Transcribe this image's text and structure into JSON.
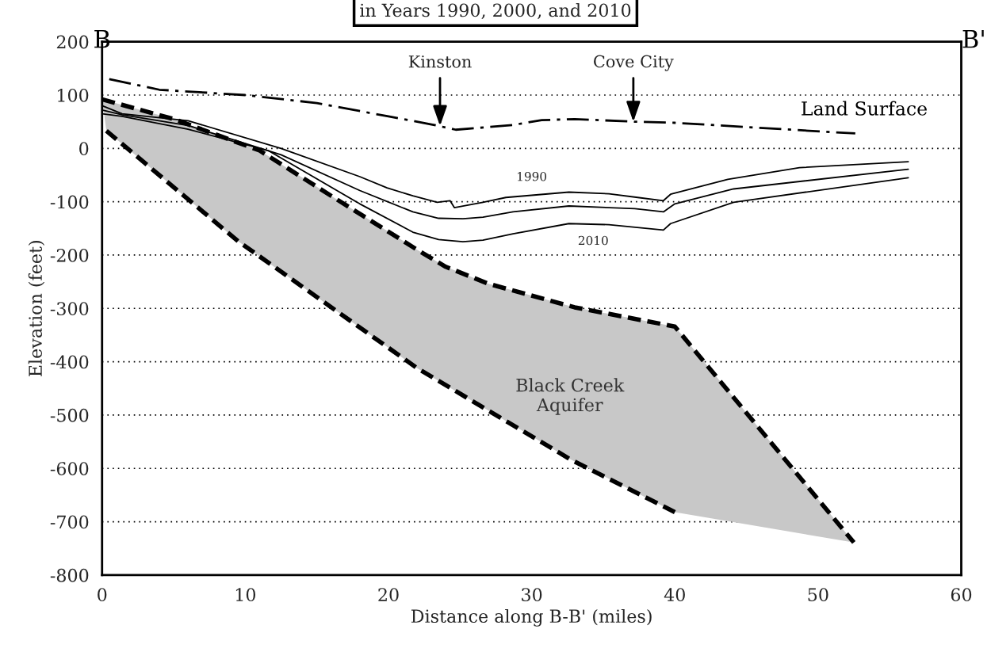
{
  "chart_data": {
    "type": "line",
    "title": "in Years 1990, 2000, and 2010",
    "xlabel": "Distance along B-B' (miles)",
    "ylabel": "Elevation (feet)",
    "xlim": [
      0,
      60
    ],
    "xticks": [
      0,
      10,
      20,
      30,
      40,
      50,
      60
    ],
    "ylim": [
      -800,
      200
    ],
    "yticks": [
      -800,
      -700,
      -600,
      -500,
      -400,
      -300,
      -200,
      -100,
      0,
      100,
      200
    ],
    "grid": "y",
    "series": [
      {
        "color": "#000000",
        "line_style": "dashdot",
        "x": [
          0.5,
          4,
          10,
          15,
          20,
          23,
          24.7,
          27,
          28.7,
          30.7,
          33,
          37.2,
          40,
          45,
          52.6
        ],
        "values": [
          130,
          110,
          100,
          85,
          60,
          45,
          35,
          40,
          44,
          53,
          55,
          50,
          48,
          40,
          28
        ]
      },
      {
        "color": "#000000",
        "line_style": "solid",
        "x": [
          0,
          1.4,
          6,
          12.5,
          18,
          19.9,
          21.7,
          23.4,
          24.3,
          24.6,
          26.6,
          28.2,
          32.6,
          35.4,
          37.4,
          39.2,
          39.7,
          43.7,
          48.7,
          56.3
        ],
        "values": [
          80,
          65,
          52,
          0,
          -53,
          -74,
          -89,
          -101,
          -98,
          -111,
          -101,
          -92,
          -82,
          -85,
          -92,
          -98,
          -86,
          -58,
          -36,
          -25
        ]
      },
      {
        "color": "#000000",
        "line_style": "solid",
        "x": [
          0,
          1.4,
          6,
          12.5,
          18,
          21.7,
          23.5,
          25.2,
          26.6,
          28.7,
          32.6,
          37.2,
          39.2,
          40,
          44.1,
          56.3
        ],
        "values": [
          72,
          63,
          43,
          -12,
          -79,
          -119,
          -131,
          -132,
          -129,
          -119,
          -108,
          -113,
          -119,
          -104,
          -76,
          -39
        ]
      },
      {
        "color": "#000000",
        "line_style": "solid",
        "x": [
          0,
          1.4,
          6,
          11.6,
          18,
          21.7,
          23.5,
          25.2,
          26.6,
          28.7,
          32.6,
          35.4,
          39.2,
          39.7,
          44.1,
          56.3
        ],
        "values": [
          65,
          60,
          36,
          -4,
          -104,
          -157,
          -171,
          -175,
          -172,
          -160,
          -141,
          -143,
          -153,
          -141,
          -101,
          -55
        ]
      },
      {
        "color": "#000000",
        "line_style": "dashed",
        "x": [
          0,
          5,
          11,
          16,
          22,
          24,
          27,
          33,
          40,
          52.5
        ],
        "values": [
          92,
          55,
          -4,
          -89,
          -190,
          -222,
          -254,
          -298,
          -334,
          -739
        ]
      },
      {
        "color": "#000000",
        "line_style": "dashed",
        "x": [
          0.3,
          9.5,
          22,
          32.7,
          40
        ],
        "values": [
          33,
          -174,
          -412,
          -583,
          -682
        ]
      }
    ],
    "annotations": [
      {
        "text": "Kinston",
        "x": 23.6,
        "y": 42
      },
      {
        "text": "Cove City",
        "x": 37.1,
        "y": 50
      },
      {
        "text": "1990",
        "x": 30,
        "y": -82
      },
      {
        "text": "2010",
        "x": 34.3,
        "y": -143
      },
      "Land Surface",
      "Black Creek\nAquifer",
      "B",
      "B'"
    ]
  }
}
